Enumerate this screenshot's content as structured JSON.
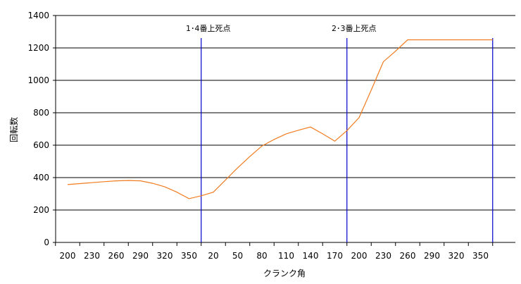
{
  "chart_data": {
    "type": "line",
    "xlabel": "クランク角",
    "ylabel": "回転数",
    "ylim": [
      0,
      1400
    ],
    "yticks": [
      0,
      200,
      400,
      600,
      800,
      1000,
      1200,
      1400
    ],
    "x_tick_labels": [
      "200",
      "230",
      "260",
      "290",
      "320",
      "350",
      "20",
      "50",
      "80",
      "110",
      "140",
      "170",
      "200",
      "230",
      "260",
      "290",
      "320",
      "350"
    ],
    "grid": "horizontal",
    "legend": "none",
    "colors": {
      "series": "#f07c20",
      "markers": "#0000cc"
    },
    "series": [
      {
        "x": [
          0,
          1.5,
          2,
          2.5,
          3,
          3.5,
          4,
          4.5,
          5,
          5.5,
          6,
          6.5,
          7,
          7.5,
          8,
          8.5,
          9,
          9.5,
          10,
          10.5,
          11,
          11.5,
          12,
          12.5,
          13,
          13.5,
          14,
          15,
          16,
          17,
          17.5
        ],
        "values": [
          357,
          375,
          380,
          382,
          380,
          365,
          343,
          310,
          270,
          288,
          310,
          385,
          460,
          530,
          595,
          635,
          670,
          692,
          712,
          670,
          625,
          690,
          770,
          940,
          1115,
          1180,
          1250,
          1250,
          1250,
          1250,
          1250
        ]
      }
    ],
    "annotations": [
      {
        "label": "1･4番上死点",
        "x": 5.5
      },
      {
        "label": "2･3番上死点",
        "x": 11.5
      },
      {
        "label": "",
        "x": 17.5
      }
    ]
  }
}
